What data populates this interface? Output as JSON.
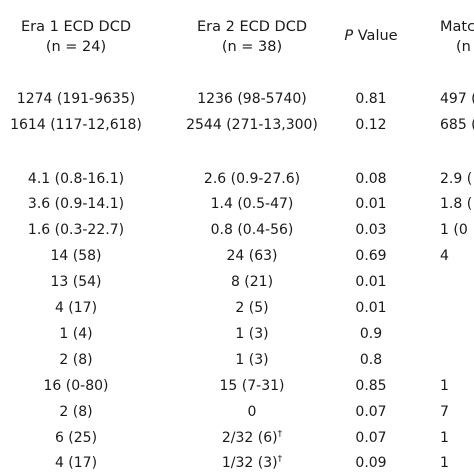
{
  "header": {
    "col1_line1": "Era 1 ECD DCD",
    "col1_line2": "(n = 24)",
    "col2_line1": "Era 2 ECD DCD",
    "col2_line2": "(n = 38)",
    "pvalue_p": "P",
    "pvalue_rest": " Value",
    "col4_partial": "Matc",
    "col4_line2_partial": "(n"
  },
  "rows": [
    {
      "c1": "1274 (191-9635)",
      "c2": "1236 (98-5740)",
      "p": "0.81",
      "c4": "497 ("
    },
    {
      "c1": "1614 (117-12,618)",
      "c2": "2544 (271-13,300)",
      "p": "0.12",
      "c4": "685 ("
    },
    {
      "c1": "4.1 (0.8-16.1)",
      "c2": "2.6 (0.9-27.6)",
      "p": "0.08",
      "c4": "2.9 ("
    },
    {
      "c1": "3.6 (0.9-14.1)",
      "c2": "1.4 (0.5-47)",
      "p": "0.01",
      "c4": "1.8 ("
    },
    {
      "c1": "1.6 (0.3-22.7)",
      "c2": "0.8 (0.4-56)",
      "p": "0.03",
      "c4": "1 (0"
    },
    {
      "c1": "14 (58)",
      "c2": "24 (63)",
      "p": "0.69",
      "c4": "4"
    },
    {
      "c1": "13 (54)",
      "c2": "8 (21)",
      "p": "0.01",
      "c4": ""
    },
    {
      "c1": "4 (17)",
      "c2": "2 (5)",
      "p": "0.01",
      "c4": ""
    },
    {
      "c1": "1 (4)",
      "c2": "1 (3)",
      "p": "0.9",
      "c4": ""
    },
    {
      "c1": "2 (8)",
      "c2": "1 (3)",
      "p": "0.8",
      "c4": ""
    },
    {
      "c1": "16 (0-80)",
      "c2": "15 (7-31)",
      "p": "0.85",
      "c4": "1"
    },
    {
      "c1": "2 (8)",
      "c2": "0",
      "p": "0.07",
      "c4": "7"
    },
    {
      "c1": "6 (25)",
      "c2": "2/32 (6)",
      "c2_sup": "†",
      "p": "0.07",
      "c4": "1"
    },
    {
      "c1": "4 (17)",
      "c2": "1/32 (3)",
      "c2_sup": "†",
      "p": "0.09",
      "c4": "1"
    }
  ]
}
